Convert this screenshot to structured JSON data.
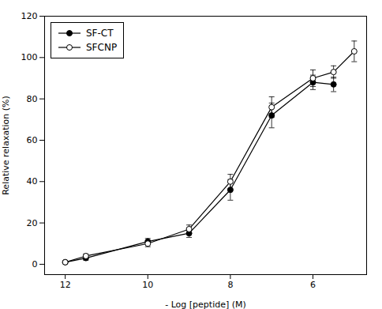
{
  "chart_data": {
    "type": "line",
    "xlabel": "- Log [peptide] (M)",
    "ylabel": "Relative relaxation (%)",
    "xlim": [
      12.5,
      4.7
    ],
    "ylim": [
      -5,
      120
    ],
    "xticks": [
      12,
      10,
      8,
      6
    ],
    "yticks": [
      0,
      20,
      40,
      60,
      80,
      100,
      120
    ],
    "grid": false,
    "legend": "upper left",
    "series": [
      {
        "name": "SF-CT",
        "color": "black",
        "marker": "circle",
        "x": [
          12,
          11.5,
          10,
          9,
          8,
          7,
          6,
          5.5
        ],
        "values": [
          1,
          3,
          11,
          15,
          36,
          72,
          88,
          87
        ],
        "yerr": [
          0.5,
          1.0,
          1.5,
          2.0,
          5.0,
          6.0,
          3.5,
          3.5
        ]
      },
      {
        "name": "SFCNP",
        "color": "black",
        "marker": "open_circle",
        "x": [
          12,
          11.5,
          10,
          9,
          8,
          7,
          6,
          5.5,
          5
        ],
        "values": [
          1,
          4,
          10,
          17,
          40,
          76,
          90,
          93,
          103
        ],
        "yerr": [
          0.5,
          1.0,
          1.5,
          2.0,
          3.5,
          5.0,
          4.0,
          3.0,
          5.0
        ]
      }
    ]
  }
}
